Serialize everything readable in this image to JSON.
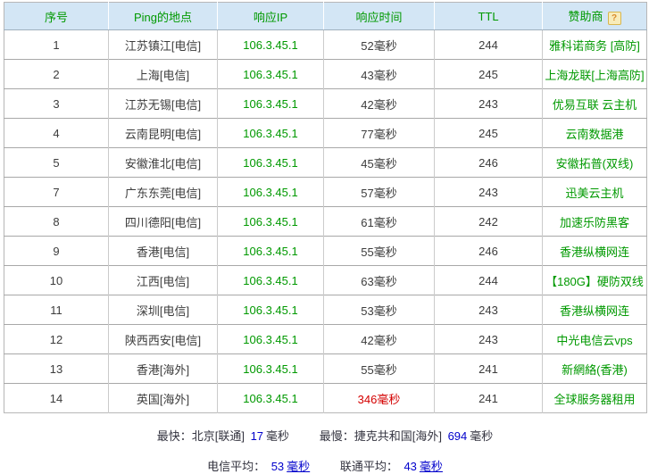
{
  "table": {
    "columns": [
      "序号",
      "Ping的地点",
      "响应IP",
      "响应时间",
      "TTL",
      "赞助商"
    ],
    "help_icon_glyph": "?",
    "rows": [
      {
        "seq": "1",
        "location": "江苏镇江[电信]",
        "ip": "106.3.45.1",
        "time": "52毫秒",
        "ttl": "244",
        "sponsor": "雅科诺商务 [高防]",
        "slow": false
      },
      {
        "seq": "2",
        "location": "上海[电信]",
        "ip": "106.3.45.1",
        "time": "43毫秒",
        "ttl": "245",
        "sponsor": "上海龙联[上海高防]",
        "slow": false
      },
      {
        "seq": "3",
        "location": "江苏无锡[电信]",
        "ip": "106.3.45.1",
        "time": "42毫秒",
        "ttl": "243",
        "sponsor": "优易互联 云主机",
        "slow": false
      },
      {
        "seq": "4",
        "location": "云南昆明[电信]",
        "ip": "106.3.45.1",
        "time": "77毫秒",
        "ttl": "245",
        "sponsor": "云南数据港",
        "slow": false
      },
      {
        "seq": "5",
        "location": "安徽淮北[电信]",
        "ip": "106.3.45.1",
        "time": "45毫秒",
        "ttl": "246",
        "sponsor": "安徽拓普(双线)",
        "slow": false
      },
      {
        "seq": "7",
        "location": "广东东莞[电信]",
        "ip": "106.3.45.1",
        "time": "57毫秒",
        "ttl": "243",
        "sponsor": "迅美云主机",
        "slow": false
      },
      {
        "seq": "8",
        "location": "四川德阳[电信]",
        "ip": "106.3.45.1",
        "time": "61毫秒",
        "ttl": "242",
        "sponsor": "加速乐防黑客",
        "slow": false
      },
      {
        "seq": "9",
        "location": "香港[电信]",
        "ip": "106.3.45.1",
        "time": "55毫秒",
        "ttl": "246",
        "sponsor": "香港纵横网连",
        "slow": false
      },
      {
        "seq": "10",
        "location": "江西[电信]",
        "ip": "106.3.45.1",
        "time": "63毫秒",
        "ttl": "244",
        "sponsor": "【180G】硬防双线",
        "slow": false
      },
      {
        "seq": "11",
        "location": "深圳[电信]",
        "ip": "106.3.45.1",
        "time": "53毫秒",
        "ttl": "243",
        "sponsor": "香港纵横网连",
        "slow": false
      },
      {
        "seq": "12",
        "location": "陕西西安[电信]",
        "ip": "106.3.45.1",
        "time": "42毫秒",
        "ttl": "243",
        "sponsor": "中光电信云vps",
        "slow": false
      },
      {
        "seq": "13",
        "location": "香港[海外]",
        "ip": "106.3.45.1",
        "time": "55毫秒",
        "ttl": "241",
        "sponsor": "新網絡(香港)",
        "slow": false
      },
      {
        "seq": "14",
        "location": "英国[海外]",
        "ip": "106.3.45.1",
        "time": "346毫秒",
        "ttl": "241",
        "sponsor": "全球服务器租用",
        "slow": true
      }
    ]
  },
  "footer": {
    "fastest_label": "最快：",
    "fastest_place": "北京[联通]",
    "fastest_value": "17",
    "fastest_unit": "毫秒",
    "slowest_label": "最慢：",
    "slowest_place": "捷克共和国[海外]",
    "slowest_value": "694",
    "slowest_unit": "毫秒",
    "telecom_avg_label": "电信平均：",
    "telecom_avg_value": "53",
    "telecom_avg_unit": "毫秒",
    "unicom_avg_label": "联通平均：",
    "unicom_avg_value": "43",
    "unicom_avg_unit": "毫秒"
  },
  "colors": {
    "header_bg": "#d3e6f5",
    "green": "#009900",
    "red": "#d40000",
    "blue": "#0000cc"
  }
}
